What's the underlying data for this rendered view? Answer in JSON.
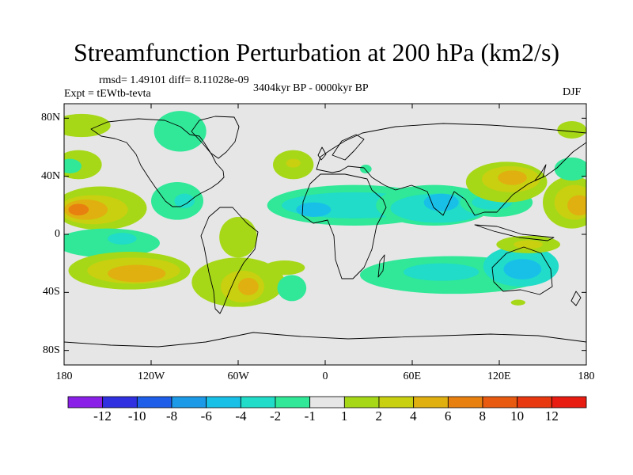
{
  "title": "Streamfunction Perturbation at 200 hPa (km2/s)",
  "stats": "rmsd= 1.49101 diff= 8.11028e-09",
  "experiment": "Expt = tEWtb-tevta",
  "period": "3404kyr BP - 0000kyr BP",
  "season": "DJF",
  "chart_data": {
    "type": "contour-map",
    "variable": "Streamfunction perturbation",
    "level": "200 hPa",
    "units": "km2/s",
    "xlim": [
      -180,
      180
    ],
    "ylim": [
      -90,
      90
    ],
    "x_ticks": [
      {
        "value": -180,
        "label": "180"
      },
      {
        "value": -120,
        "label": "120W"
      },
      {
        "value": -60,
        "label": "60W"
      },
      {
        "value": 0,
        "label": "0"
      },
      {
        "value": 60,
        "label": "60E"
      },
      {
        "value": 120,
        "label": "120E"
      },
      {
        "value": 180,
        "label": "180"
      }
    ],
    "y_ticks": [
      {
        "value": 80,
        "label": "80N"
      },
      {
        "value": 40,
        "label": "40N"
      },
      {
        "value": 0,
        "label": "0"
      },
      {
        "value": -40,
        "label": "40S"
      },
      {
        "value": -80,
        "label": "80S"
      }
    ],
    "colorbar": {
      "labels": [
        "-12",
        "-10",
        "-8",
        "-6",
        "-4",
        "-2",
        "-1",
        "1",
        "2",
        "4",
        "6",
        "8",
        "10",
        "12"
      ],
      "colors": [
        "#8a20e8",
        "#3030e0",
        "#1e5ee8",
        "#1c9ae8",
        "#18c0e8",
        "#20dcc8",
        "#30e898",
        "#e6e6e6",
        "#a6d818",
        "#c8d010",
        "#e0b010",
        "#e88010",
        "#e85a10",
        "#e83810",
        "#e81c10"
      ]
    },
    "regions": [
      {
        "lon": -170,
        "lat": 48,
        "rx": 16,
        "ry": 10,
        "level": 1
      },
      {
        "lon": -176,
        "lat": 47,
        "rx": 8,
        "ry": 5,
        "level": -1
      },
      {
        "lon": -168,
        "lat": 75,
        "rx": 20,
        "ry": 8,
        "level": 1
      },
      {
        "lon": -155,
        "lat": 18,
        "rx": 32,
        "ry": 15,
        "level": 1
      },
      {
        "lon": -160,
        "lat": 17,
        "rx": 24,
        "ry": 10,
        "level": 2
      },
      {
        "lon": -165,
        "lat": 17,
        "rx": 15,
        "ry": 7,
        "level": 3
      },
      {
        "lon": -170,
        "lat": 17,
        "rx": 7,
        "ry": 4,
        "level": 4
      },
      {
        "lon": -150,
        "lat": -6,
        "rx": 36,
        "ry": 10,
        "level": -1
      },
      {
        "lon": -140,
        "lat": -3,
        "rx": 10,
        "ry": 4,
        "level": -2
      },
      {
        "lon": -135,
        "lat": -25,
        "rx": 42,
        "ry": 13,
        "level": 1
      },
      {
        "lon": -132,
        "lat": -25,
        "rx": 32,
        "ry": 9,
        "level": 2
      },
      {
        "lon": -130,
        "lat": -27,
        "rx": 20,
        "ry": 6,
        "level": 3
      },
      {
        "lon": -102,
        "lat": 23,
        "rx": 18,
        "ry": 13,
        "level": -1
      },
      {
        "lon": -97,
        "lat": 23,
        "rx": 7,
        "ry": 5,
        "level": -2
      },
      {
        "lon": -60,
        "lat": -2,
        "rx": 13,
        "ry": 14,
        "level": 1
      },
      {
        "lon": -60,
        "lat": -33,
        "rx": 32,
        "ry": 17,
        "level": 1
      },
      {
        "lon": -57,
        "lat": -36,
        "rx": 15,
        "ry": 11,
        "level": 2
      },
      {
        "lon": -53,
        "lat": -36,
        "rx": 7,
        "ry": 6,
        "level": 3
      },
      {
        "lon": -28,
        "lat": -23,
        "rx": 14,
        "ry": 5,
        "level": 1
      },
      {
        "lon": -100,
        "lat": 71,
        "rx": 18,
        "ry": 14,
        "level": -1
      },
      {
        "lon": -22,
        "lat": 48,
        "rx": 14,
        "ry": 10,
        "level": 1
      },
      {
        "lon": -22,
        "lat": 49,
        "rx": 5,
        "ry": 3,
        "level": 2
      },
      {
        "lon": -23,
        "lat": -37,
        "rx": 10,
        "ry": 9,
        "level": -1
      },
      {
        "lon": 28,
        "lat": 45,
        "rx": 4,
        "ry": 3,
        "level": -1
      },
      {
        "lon": 20,
        "lat": 20,
        "rx": 60,
        "ry": 14,
        "level": -1
      },
      {
        "lon": 20,
        "lat": 20,
        "rx": 50,
        "ry": 9,
        "level": -2
      },
      {
        "lon": -8,
        "lat": 17,
        "rx": 12,
        "ry": 5,
        "level": -3
      },
      {
        "lon": 75,
        "lat": 20,
        "rx": 40,
        "ry": 14,
        "level": -1
      },
      {
        "lon": 78,
        "lat": 18,
        "rx": 33,
        "ry": 10,
        "level": -2
      },
      {
        "lon": 80,
        "lat": 22,
        "rx": 12,
        "ry": 6,
        "level": -3
      },
      {
        "lon": 118,
        "lat": 22,
        "rx": 25,
        "ry": 10,
        "level": -1
      },
      {
        "lon": 115,
        "lat": 22,
        "rx": 14,
        "ry": 5,
        "level": -2
      },
      {
        "lon": 125,
        "lat": 36,
        "rx": 28,
        "ry": 14,
        "level": 1
      },
      {
        "lon": 128,
        "lat": 38,
        "rx": 20,
        "ry": 9,
        "level": 2
      },
      {
        "lon": 129,
        "lat": 39,
        "rx": 10,
        "ry": 5,
        "level": 3
      },
      {
        "lon": 170,
        "lat": 22,
        "rx": 20,
        "ry": 18,
        "level": 1
      },
      {
        "lon": 172,
        "lat": 22,
        "rx": 14,
        "ry": 12,
        "level": 2
      },
      {
        "lon": 175,
        "lat": 20,
        "rx": 8,
        "ry": 7,
        "level": 3
      },
      {
        "lon": 170,
        "lat": 45,
        "rx": 12,
        "ry": 8,
        "level": -1
      },
      {
        "lon": 170,
        "lat": 72,
        "rx": 10,
        "ry": 6,
        "level": 1
      },
      {
        "lon": 88,
        "lat": -28,
        "rx": 64,
        "ry": 13,
        "level": -1
      },
      {
        "lon": 80,
        "lat": -26,
        "rx": 26,
        "ry": 6,
        "level": -2
      },
      {
        "lon": 135,
        "lat": -22,
        "rx": 26,
        "ry": 14,
        "level": -2
      },
      {
        "lon": 136,
        "lat": -24,
        "rx": 13,
        "ry": 7,
        "level": -3
      },
      {
        "lon": 140,
        "lat": -7,
        "rx": 22,
        "ry": 6,
        "level": 1
      },
      {
        "lon": 140,
        "lat": -7,
        "rx": 10,
        "ry": 3,
        "level": 2
      },
      {
        "lon": 133,
        "lat": -47,
        "rx": 5,
        "ry": 2,
        "level": 1
      }
    ]
  }
}
